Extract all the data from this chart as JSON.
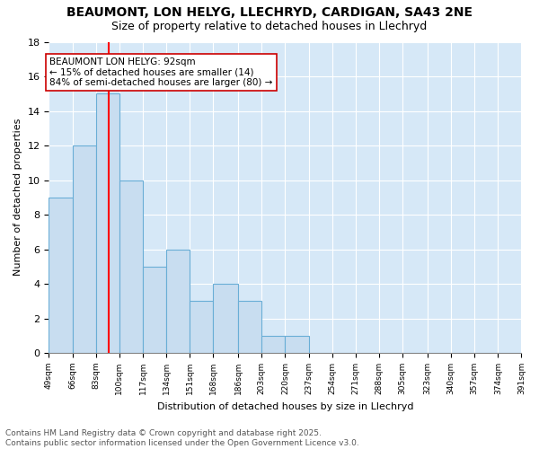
{
  "title": "BEAUMONT, LON HELYG, LLECHRYD, CARDIGAN, SA43 2NE",
  "subtitle": "Size of property relative to detached houses in Llechryd",
  "xlabel": "Distribution of detached houses by size in Llechryd",
  "ylabel": "Number of detached properties",
  "bins": [
    49,
    66,
    83,
    100,
    117,
    134,
    151,
    168,
    186,
    203,
    220,
    237,
    254,
    271,
    288,
    305,
    323,
    340,
    357,
    374,
    391
  ],
  "counts": [
    9,
    12,
    15,
    10,
    5,
    6,
    3,
    4,
    3,
    1,
    1,
    0,
    0,
    0,
    0,
    0,
    0,
    0,
    0,
    0
  ],
  "tick_labels": [
    "49sqm",
    "66sqm",
    "83sqm",
    "100sqm",
    "117sqm",
    "134sqm",
    "151sqm",
    "168sqm",
    "186sqm",
    "203sqm",
    "220sqm",
    "237sqm",
    "254sqm",
    "271sqm",
    "288sqm",
    "305sqm",
    "323sqm",
    "340sqm",
    "357sqm",
    "374sqm",
    "391sqm"
  ],
  "bar_color": "#c8ddf0",
  "bar_edge_color": "#6aaed6",
  "grid_color": "#ffffff",
  "bg_color": "#d6e8f7",
  "fig_bg_color": "#ffffff",
  "red_line_x": 92,
  "annotation_text": "BEAUMONT LON HELYG: 92sqm\n← 15% of detached houses are smaller (14)\n84% of semi-detached houses are larger (80) →",
  "annotation_box_color": "#ffffff",
  "annotation_box_edge": "#cc0000",
  "ylim": [
    0,
    18
  ],
  "yticks": [
    0,
    2,
    4,
    6,
    8,
    10,
    12,
    14,
    16,
    18
  ],
  "footnote": "Contains HM Land Registry data © Crown copyright and database right 2025.\nContains public sector information licensed under the Open Government Licence v3.0.",
  "title_fontsize": 10,
  "subtitle_fontsize": 9,
  "footnote_fontsize": 6.5,
  "annotation_fontsize": 7.5,
  "ylabel_fontsize": 8,
  "xlabel_fontsize": 8
}
